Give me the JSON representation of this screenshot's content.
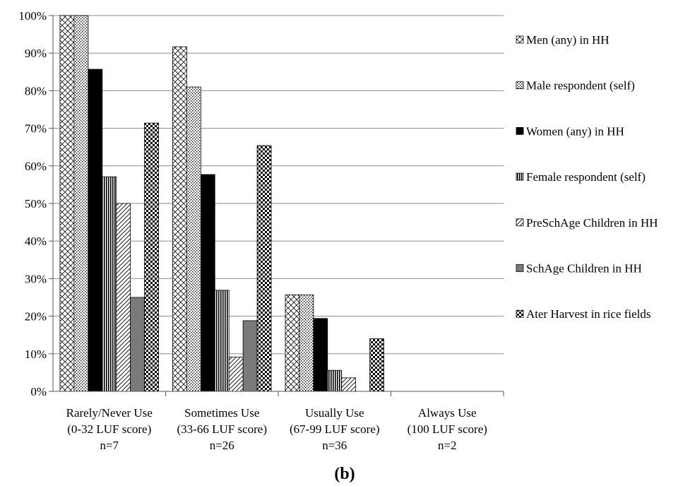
{
  "chart_data": {
    "type": "bar",
    "panel_label": "(b)",
    "ylim": [
      0,
      100
    ],
    "y_ticks": [
      0,
      10,
      20,
      30,
      40,
      50,
      60,
      70,
      80,
      90,
      100
    ],
    "y_tick_suffix": "%",
    "categories": [
      [
        "Rarely/Never Use",
        "(0-32 LUF score)",
        "n=7"
      ],
      [
        "Sometimes Use",
        "(33-66 LUF score)",
        "n=26"
      ],
      [
        "Usually Use",
        "(67-99 LUF score)",
        "n=36"
      ],
      [
        "Always Use",
        "(100 LUF score)",
        "n=2"
      ]
    ],
    "grid": true,
    "legend_position": "right",
    "series": [
      {
        "name": "Men (any) in HH",
        "pattern": "diamond-outline",
        "values": [
          100,
          91.7,
          25.7,
          0
        ]
      },
      {
        "name": "Male respondent (self)",
        "pattern": "dots",
        "values": [
          100,
          81,
          25.7,
          0
        ]
      },
      {
        "name": "Women (any) in HH",
        "pattern": "solid-black",
        "values": [
          85.7,
          57.7,
          19.4,
          0
        ]
      },
      {
        "name": "Female respondent (self)",
        "pattern": "vertical-lines",
        "values": [
          57.1,
          26.9,
          5.6,
          0
        ]
      },
      {
        "name": "PreSchAge Children in HH",
        "pattern": "diagonal-lines",
        "values": [
          50,
          9.1,
          3.6,
          0
        ]
      },
      {
        "name": "SchAge Children in HH",
        "pattern": "solid-gray",
        "values": [
          25,
          18.8,
          0,
          0
        ]
      },
      {
        "name": "Ater Harvest in rice fields",
        "pattern": "checker",
        "values": [
          71.4,
          65.4,
          14,
          0
        ]
      }
    ]
  }
}
